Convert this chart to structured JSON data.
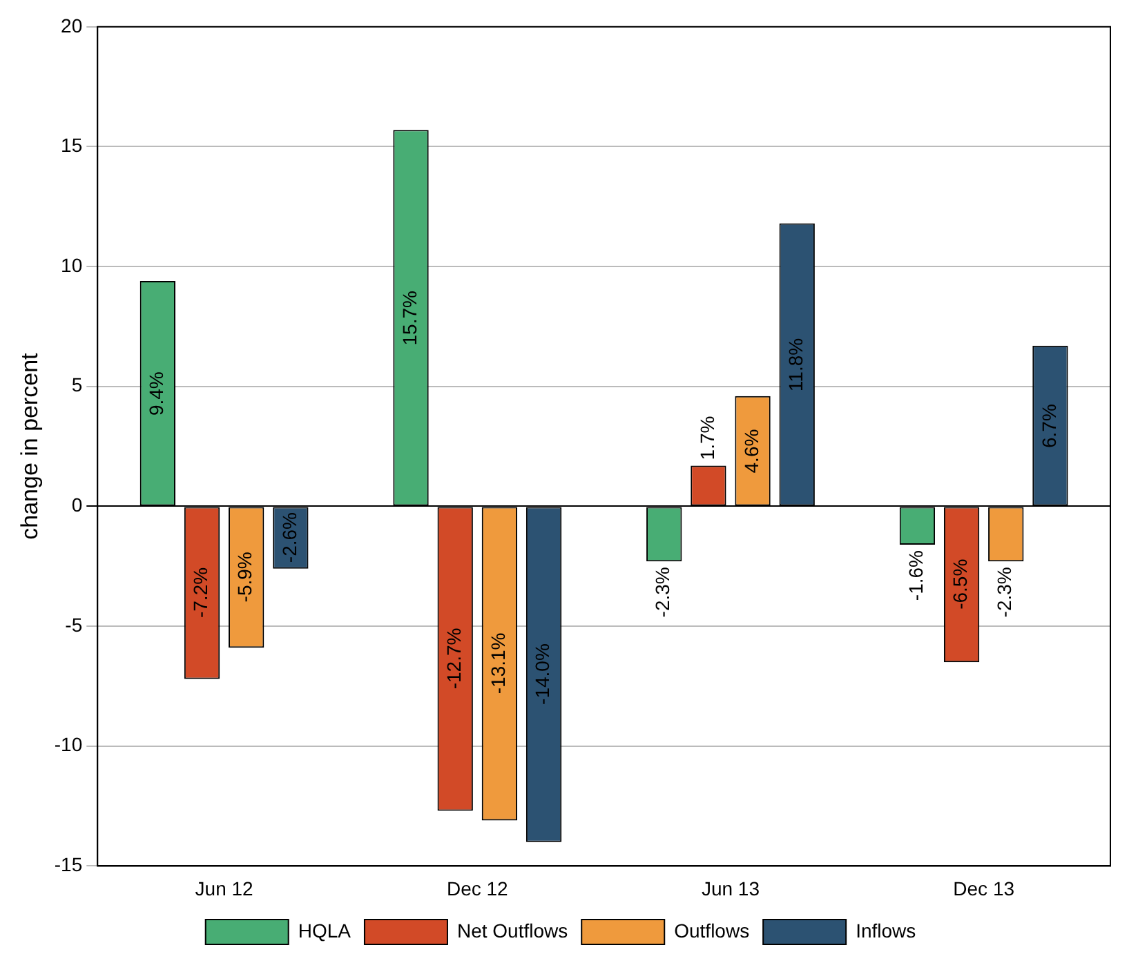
{
  "chart_data": {
    "type": "bar",
    "ylabel": "change in percent",
    "categories": [
      "Jun 12",
      "Dec 12",
      "Jun 13",
      "Dec 13"
    ],
    "series": [
      {
        "name": "HQLA",
        "color": "#48ad74",
        "values": [
          9.4,
          15.7,
          -2.3,
          -1.6
        ],
        "value_labels": [
          "9.4%",
          "15.7%",
          "-2.3%",
          "-1.6%"
        ]
      },
      {
        "name": "Net Outflows",
        "color": "#d24a27",
        "values": [
          -7.2,
          -12.7,
          1.7,
          -6.5
        ],
        "value_labels": [
          "-7.2%",
          "-12.7%",
          "1.7%",
          "-6.5%"
        ]
      },
      {
        "name": "Outflows",
        "color": "#ef9a3d",
        "values": [
          -5.9,
          -13.1,
          4.6,
          -2.3
        ],
        "value_labels": [
          "-5.9%",
          "-13.1%",
          "4.6%",
          "-2.3%"
        ]
      },
      {
        "name": "Inflows",
        "color": "#2c5272",
        "values": [
          -2.6,
          -14.0,
          11.8,
          6.7
        ],
        "value_labels": [
          "-2.6%",
          "-14.0%",
          "11.8%",
          "6.7%"
        ]
      }
    ],
    "ylim": [
      -15,
      20
    ],
    "yticks": [
      -15,
      -10,
      -5,
      0,
      5,
      10,
      15,
      20
    ],
    "grid": "y",
    "legend": "bottom"
  }
}
